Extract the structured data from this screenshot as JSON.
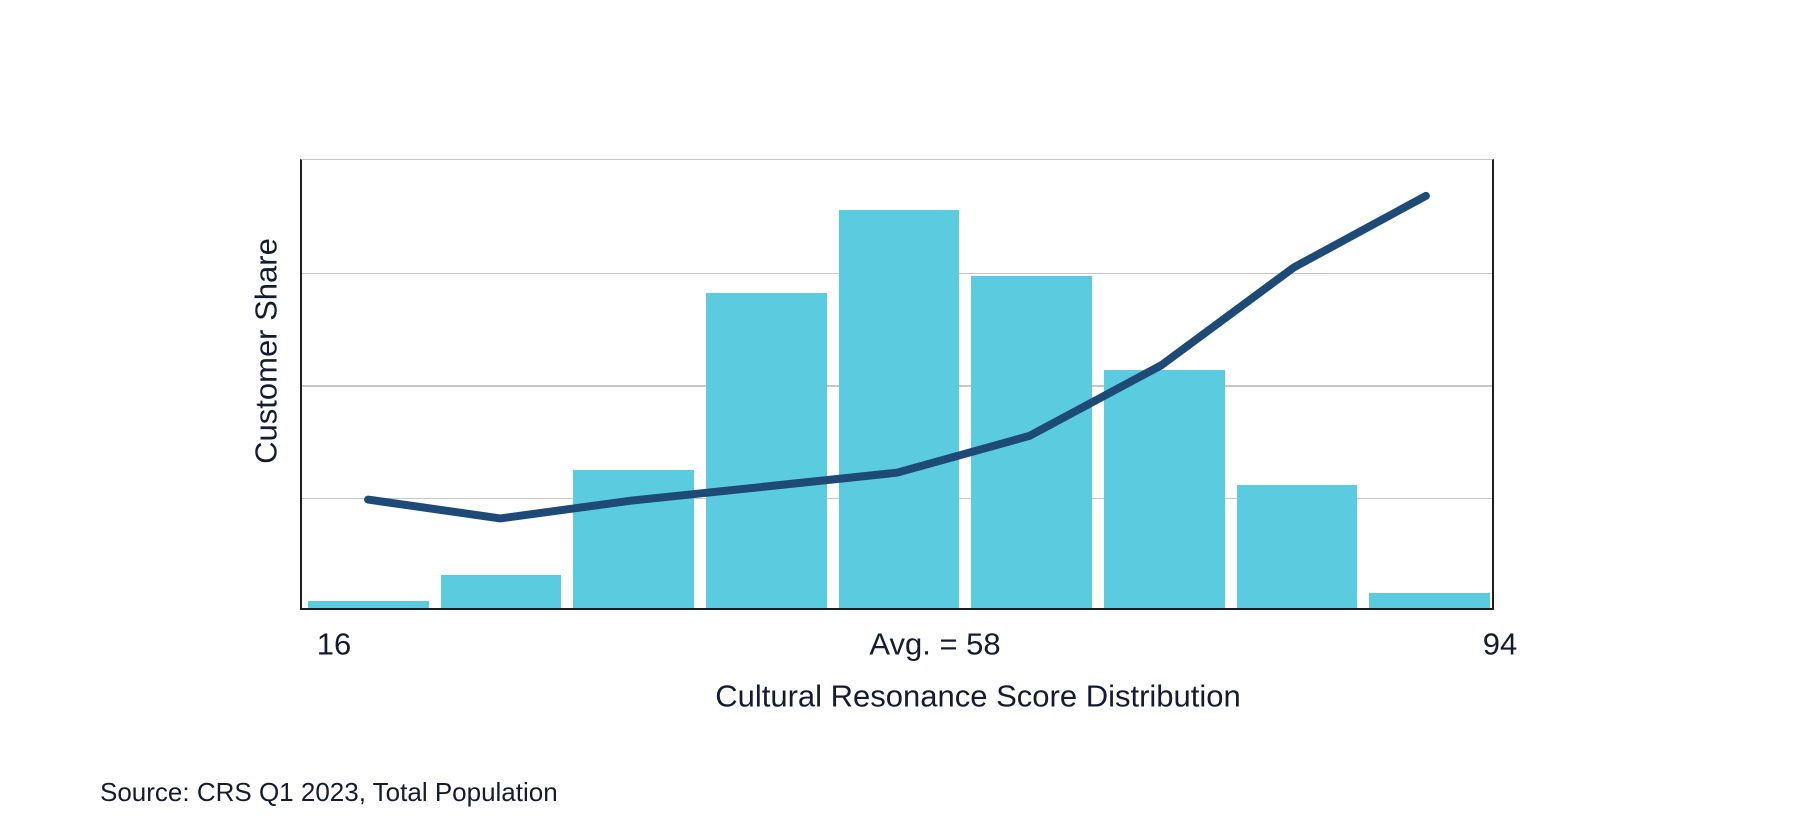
{
  "figure": {
    "y_axis_label": "Customer Share",
    "x_axis_label": "Cultural Resonance Score Distribution",
    "x_ticks": [
      {
        "label": "16",
        "position": "left-edge",
        "value": 16
      },
      {
        "label": "Avg. = 58",
        "position": "at-average-value",
        "value": 58
      },
      {
        "label": "94",
        "position": "right-edge",
        "value": 94
      }
    ],
    "source_note": "Source: CRS Q1 2023, Total Population"
  },
  "chart_data": {
    "type": "bar",
    "subtype": "histogram with unlabeled trend-line overlay",
    "title": "",
    "xlabel": "Cultural Resonance Score Distribution",
    "ylabel": "Customer Share",
    "x_axis": {
      "range": [
        16,
        94
      ],
      "bins": 9,
      "tick_labels": [
        "16",
        "Avg. = 58",
        "94"
      ],
      "average_annotation": "Avg. = 58",
      "average_value": 58
    },
    "y_axis": {
      "numeric_tick_labels_visible": false,
      "gridlines_rel_from_top": [
        0,
        0.25,
        0.5,
        0.75
      ],
      "ylim_rel": [
        0,
        1
      ]
    },
    "legend": "none",
    "grid": "horizontal only",
    "series": [
      {
        "name": "customer-share-histogram",
        "type": "bar",
        "color": "#5bcbdf",
        "heights_rel_to_plot": [
          0.016,
          0.073,
          0.307,
          0.7,
          0.884,
          0.738,
          0.529,
          0.273,
          0.033
        ],
        "values_pct_of_total_est": [
          0.4,
          2.1,
          8.6,
          19.7,
          24.9,
          20.8,
          14.9,
          7.7,
          0.9
        ]
      },
      {
        "name": "trend-line",
        "type": "line",
        "color": "#1d4a76",
        "stroke_width": 8,
        "values_rel_to_plot": [
          0.242,
          0.2,
          0.24,
          0.271,
          0.302,
          0.384,
          0.542,
          0.76,
          0.92
        ]
      }
    ],
    "colors": {
      "bar": "#5bcbdf",
      "line": "#1d4a76",
      "gridline": "#c7c7c7",
      "axis_spine": "#1e1e1e",
      "text": "#151b32",
      "background": "#ffffff"
    }
  }
}
